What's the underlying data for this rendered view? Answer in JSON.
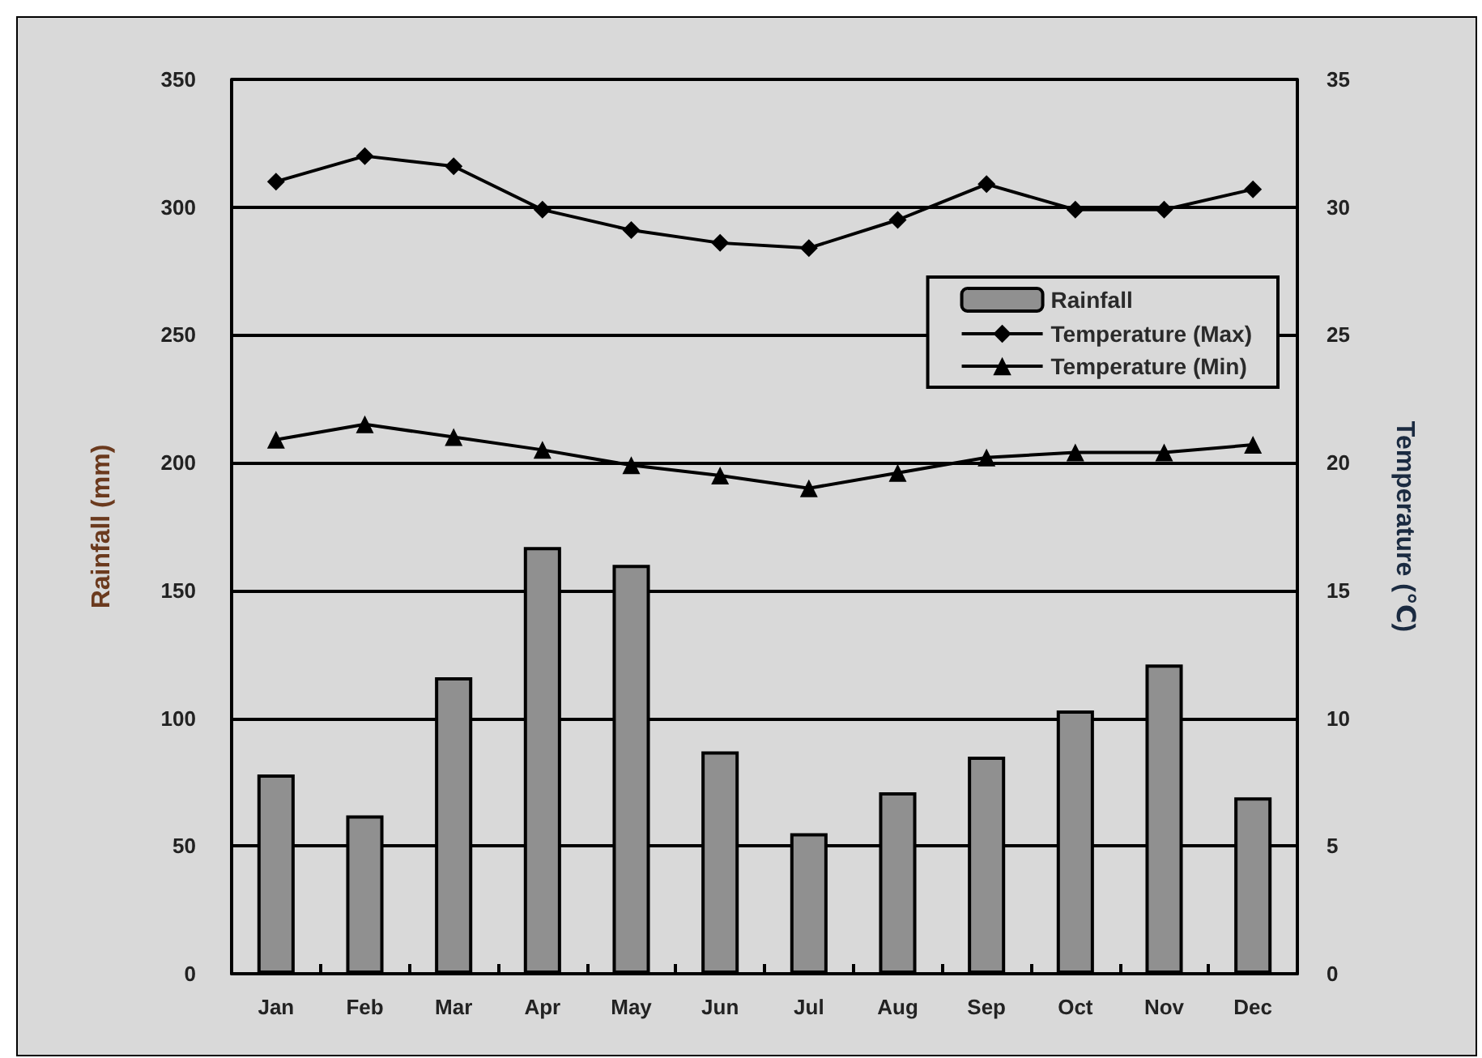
{
  "chart_data": {
    "type": "bar",
    "categories": [
      "Jan",
      "Feb",
      "Mar",
      "Apr",
      "May",
      "Jun",
      "Jul",
      "Aug",
      "Sep",
      "Oct",
      "Nov",
      "Dec"
    ],
    "ylabel": "Rainfall (mm)",
    "y2label": "Temperature (℃)",
    "ylim": [
      0,
      350
    ],
    "yticks": [
      0,
      50,
      100,
      150,
      200,
      250,
      300,
      350
    ],
    "y2lim": [
      0,
      35
    ],
    "y2ticks": [
      0,
      5,
      10,
      15,
      20,
      25,
      30,
      35
    ],
    "grid": "y",
    "legend": "top right",
    "series": [
      {
        "name": "Rainfall",
        "color": "#909090",
        "values": [
          78,
          62,
          116,
          167,
          160,
          87,
          55,
          71,
          85,
          103,
          121,
          69
        ]
      },
      {
        "name": "Temperature (Max)",
        "type": "line",
        "axis": "y2",
        "marker": "diamond",
        "color": "#000000",
        "values": [
          31.0,
          32.0,
          31.6,
          29.9,
          29.1,
          28.6,
          28.4,
          29.5,
          30.9,
          29.9,
          29.9,
          30.7
        ]
      },
      {
        "name": "Temperature (Min)",
        "type": "line",
        "axis": "y2",
        "marker": "triangle",
        "color": "#000000",
        "values": [
          20.9,
          21.5,
          21.0,
          20.5,
          19.9,
          19.5,
          19.0,
          19.6,
          20.2,
          20.4,
          20.4,
          20.7
        ]
      }
    ]
  }
}
